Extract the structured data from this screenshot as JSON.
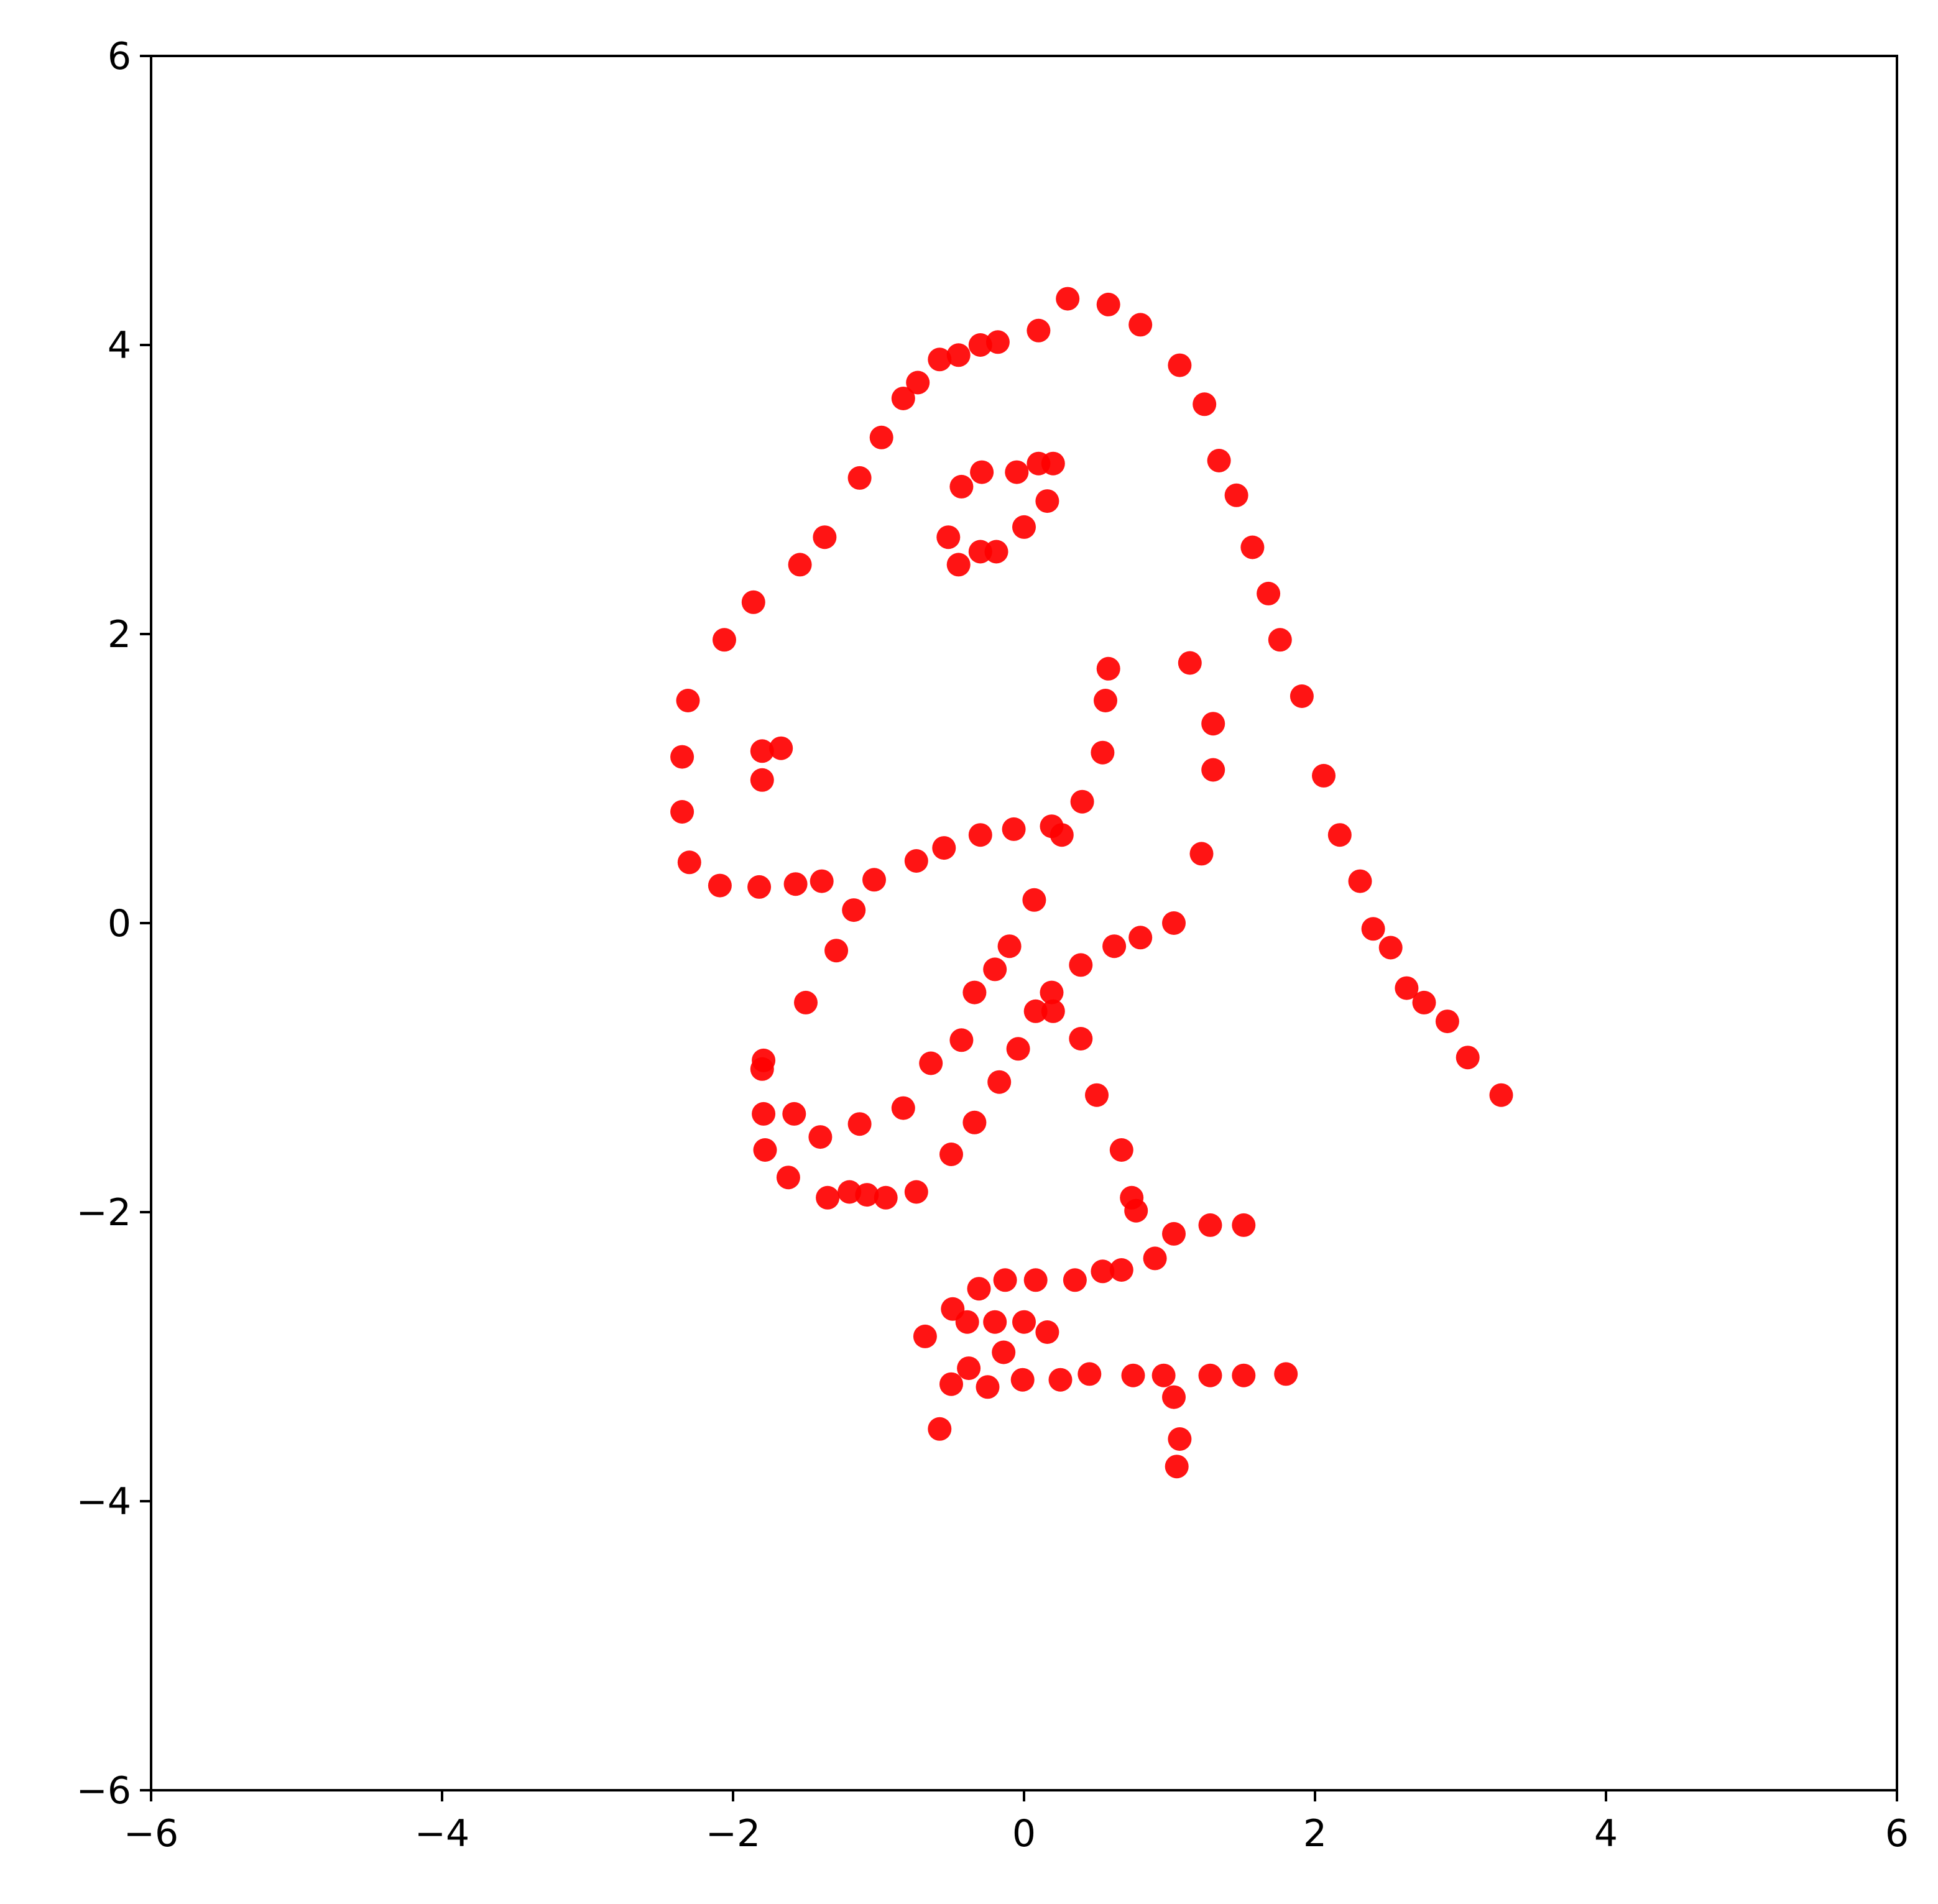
{
  "chart_data": {
    "type": "scatter",
    "title": "",
    "xlabel": "",
    "ylabel": "",
    "xlim": [
      -6,
      6
    ],
    "ylim": [
      -6,
      6
    ],
    "grid": false,
    "x_ticks": [
      -6,
      -4,
      -2,
      0,
      2,
      4,
      6
    ],
    "y_ticks": [
      -6,
      -4,
      -2,
      0,
      2,
      4,
      6
    ],
    "x_tick_labels": [
      "−6",
      "−4",
      "−2",
      "0",
      "2",
      "4",
      "6"
    ],
    "y_tick_labels": [
      "−6",
      "−4",
      "−2",
      "0",
      "2",
      "4",
      "6"
    ],
    "marker_color": "#ff0000",
    "points": [
      [
        0.3,
        4.32
      ],
      [
        0.58,
        4.28
      ],
      [
        0.8,
        4.14
      ],
      [
        0.1,
        4.1
      ],
      [
        -0.18,
        4.02
      ],
      [
        -0.3,
        4.0
      ],
      [
        -0.45,
        3.93
      ],
      [
        -0.58,
        3.9
      ],
      [
        -0.73,
        3.74
      ],
      [
        -0.83,
        3.63
      ],
      [
        -0.98,
        3.36
      ],
      [
        -1.13,
        3.08
      ],
      [
        -1.37,
        2.67
      ],
      [
        -1.54,
        2.48
      ],
      [
        -1.86,
        2.22
      ],
      [
        -2.06,
        1.96
      ],
      [
        -2.31,
        1.54
      ],
      [
        -2.35,
        1.15
      ],
      [
        -2.35,
        0.77
      ],
      [
        -2.3,
        0.42
      ],
      [
        -2.09,
        0.26
      ],
      [
        -1.82,
        0.25
      ],
      [
        -1.57,
        0.27
      ],
      [
        -1.39,
        0.29
      ],
      [
        -1.03,
        0.3
      ],
      [
        -0.74,
        0.43
      ],
      [
        -0.55,
        0.52
      ],
      [
        -0.3,
        0.61
      ],
      [
        -0.07,
        0.65
      ],
      [
        0.19,
        0.67
      ],
      [
        0.26,
        0.61
      ],
      [
        0.4,
        0.84
      ],
      [
        0.54,
        1.18
      ],
      [
        0.56,
        1.54
      ],
      [
        0.58,
        1.76
      ],
      [
        -1.8,
        1.19
      ],
      [
        -1.67,
        1.21
      ],
      [
        -1.8,
        0.99
      ],
      [
        1.07,
        3.86
      ],
      [
        1.24,
        3.59
      ],
      [
        1.34,
        3.2
      ],
      [
        1.46,
        2.96
      ],
      [
        1.57,
        2.6
      ],
      [
        1.68,
        2.28
      ],
      [
        1.76,
        1.96
      ],
      [
        1.91,
        1.57
      ],
      [
        2.06,
        1.02
      ],
      [
        2.17,
        0.61
      ],
      [
        2.31,
        0.29
      ],
      [
        2.4,
        -0.04
      ],
      [
        2.52,
        -0.17
      ],
      [
        2.63,
        -0.45
      ],
      [
        2.75,
        -0.55
      ],
      [
        2.91,
        -0.68
      ],
      [
        3.05,
        -0.93
      ],
      [
        3.28,
        -1.19
      ],
      [
        -0.05,
        3.12
      ],
      [
        -0.29,
        3.12
      ],
      [
        -0.43,
        3.02
      ],
      [
        0.1,
        3.18
      ],
      [
        0.2,
        3.18
      ],
      [
        0.16,
        2.92
      ],
      [
        0.0,
        2.74
      ],
      [
        -0.19,
        2.57
      ],
      [
        -0.3,
        2.57
      ],
      [
        -0.45,
        2.48
      ],
      [
        -0.52,
        2.67
      ],
      [
        1.14,
        1.8
      ],
      [
        1.3,
        1.38
      ],
      [
        1.3,
        1.06
      ],
      [
        1.22,
        0.48
      ],
      [
        -1.17,
        0.09
      ],
      [
        -1.29,
        -0.19
      ],
      [
        -1.5,
        -0.55
      ],
      [
        -1.79,
        -0.95
      ],
      [
        -1.8,
        -1.01
      ],
      [
        -1.79,
        -1.32
      ],
      [
        -1.78,
        -1.57
      ],
      [
        -1.62,
        -1.76
      ],
      [
        -1.58,
        -1.32
      ],
      [
        -1.4,
        -1.48
      ],
      [
        -1.35,
        -1.9
      ],
      [
        -1.2,
        -1.86
      ],
      [
        -1.08,
        -1.88
      ],
      [
        -0.95,
        -1.9
      ],
      [
        -0.74,
        -1.86
      ],
      [
        -1.13,
        -1.39
      ],
      [
        -0.83,
        -1.28
      ],
      [
        -0.64,
        -0.97
      ],
      [
        -0.43,
        -0.81
      ],
      [
        -0.34,
        -0.48
      ],
      [
        -0.2,
        -0.32
      ],
      [
        -0.1,
        -0.16
      ],
      [
        0.07,
        0.16
      ],
      [
        1.03,
        0.0
      ],
      [
        0.8,
        -0.1
      ],
      [
        0.62,
        -0.16
      ],
      [
        0.39,
        -0.29
      ],
      [
        0.19,
        -0.48
      ],
      [
        0.08,
        -0.61
      ],
      [
        0.2,
        -0.61
      ],
      [
        -0.04,
        -0.87
      ],
      [
        -0.17,
        -1.1
      ],
      [
        -0.34,
        -1.38
      ],
      [
        -0.5,
        -1.6
      ],
      [
        0.39,
        -0.8
      ],
      [
        0.5,
        -1.19
      ],
      [
        0.67,
        -1.57
      ],
      [
        0.74,
        -1.9
      ],
      [
        0.77,
        -1.99
      ],
      [
        1.03,
        -2.15
      ],
      [
        1.28,
        -2.09
      ],
      [
        1.51,
        -2.09
      ],
      [
        0.9,
        -2.32
      ],
      [
        0.67,
        -2.4
      ],
      [
        0.54,
        -2.41
      ],
      [
        0.35,
        -2.47
      ],
      [
        0.08,
        -2.47
      ],
      [
        -0.13,
        -2.47
      ],
      [
        -0.31,
        -2.53
      ],
      [
        -0.49,
        -2.67
      ],
      [
        -0.39,
        -2.76
      ],
      [
        -0.2,
        -2.76
      ],
      [
        0.0,
        -2.76
      ],
      [
        0.16,
        -2.83
      ],
      [
        -0.68,
        -2.86
      ],
      [
        -0.14,
        -2.97
      ],
      [
        -0.38,
        -3.08
      ],
      [
        -0.5,
        -3.19
      ],
      [
        -0.25,
        -3.21
      ],
      [
        -0.01,
        -3.16
      ],
      [
        0.25,
        -3.16
      ],
      [
        0.45,
        -3.12
      ],
      [
        0.75,
        -3.13
      ],
      [
        0.96,
        -3.13
      ],
      [
        1.28,
        -3.13
      ],
      [
        1.51,
        -3.13
      ],
      [
        1.8,
        -3.12
      ],
      [
        1.03,
        -3.28
      ],
      [
        1.07,
        -3.57
      ],
      [
        1.05,
        -3.76
      ],
      [
        -0.58,
        -3.5
      ]
    ]
  }
}
